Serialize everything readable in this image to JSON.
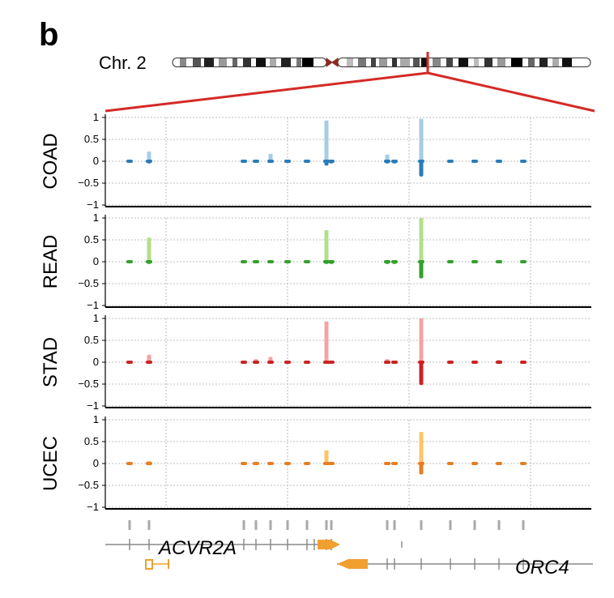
{
  "figure": {
    "panel_letter": "b",
    "chromosome_label": "Chr. 2",
    "genes": [
      {
        "name": "ACVR2A",
        "strand": "+"
      },
      {
        "name": "ORC4",
        "strand": "-"
      }
    ],
    "colors": {
      "highlight_red": "#d42a27",
      "gene_arrow": "#f0a030",
      "exon_tick": "#aaaaaa",
      "intron_line": "#888888"
    }
  },
  "chart_data": {
    "type": "bar",
    "description_axis": "genomic position (arbitrary units 0-100 across zoomed region)",
    "xlim": [
      0,
      100
    ],
    "ylim": [
      -1,
      1
    ],
    "yticks": [
      1,
      0.5,
      0,
      -0.5,
      -1
    ],
    "ytick_labels": [
      "1",
      "0.5",
      "0",
      "−0.5",
      "−1"
    ],
    "xgrid": [
      12.5,
      37.5,
      62.5,
      87.5
    ],
    "positions": [
      5,
      9,
      28.5,
      31,
      34,
      37.5,
      41.5,
      45.5,
      46.5,
      58,
      59.5,
      65,
      71,
      76,
      81,
      86
    ],
    "series": [
      {
        "name": "COAD",
        "color_light": "#a6cde3",
        "color_dark": "#2b7bb9",
        "pos": [
          0,
          0.22,
          0,
          0,
          0.17,
          0,
          0,
          0.93,
          0,
          0.15,
          0,
          0.97,
          0,
          0,
          0,
          0
        ],
        "neg": [
          0,
          -0.05,
          0,
          0,
          -0.03,
          0,
          0,
          -0.1,
          -0.05,
          -0.05,
          -0.05,
          -0.35,
          0,
          0,
          0,
          0
        ]
      },
      {
        "name": "READ",
        "color_light": "#b2df8a",
        "color_dark": "#33a02c",
        "pos": [
          0,
          0.55,
          0,
          0,
          0,
          0,
          0,
          0.72,
          0,
          0,
          0,
          1.0,
          0,
          0,
          0,
          0
        ],
        "neg": [
          0,
          -0.05,
          0,
          0,
          0,
          0,
          0,
          -0.05,
          -0.05,
          -0.05,
          -0.05,
          -0.38,
          0,
          0,
          0,
          0
        ]
      },
      {
        "name": "STAD",
        "color_light": "#f4a3a3",
        "color_dark": "#cc2222",
        "pos": [
          0,
          0.17,
          0,
          0.07,
          0.12,
          0,
          0,
          0.93,
          0,
          0.07,
          0,
          1.0,
          0,
          0,
          0.05,
          0
        ],
        "neg": [
          0,
          -0.03,
          0,
          0,
          -0.03,
          0,
          0,
          -0.03,
          -0.03,
          -0.03,
          -0.03,
          -0.52,
          0,
          0,
          0,
          0
        ]
      },
      {
        "name": "UCEC",
        "color_light": "#fdc46a",
        "color_dark": "#e67e22",
        "pos": [
          0,
          0.06,
          0,
          0,
          0,
          0,
          0,
          0.3,
          0,
          0,
          0,
          0.72,
          0,
          0,
          0,
          0
        ],
        "neg": [
          0,
          -0.03,
          0,
          0,
          0,
          0,
          0,
          -0.03,
          -0.03,
          -0.03,
          -0.03,
          -0.25,
          0,
          0,
          0,
          0
        ]
      }
    ],
    "xlabel": "",
    "ylabel": ""
  }
}
